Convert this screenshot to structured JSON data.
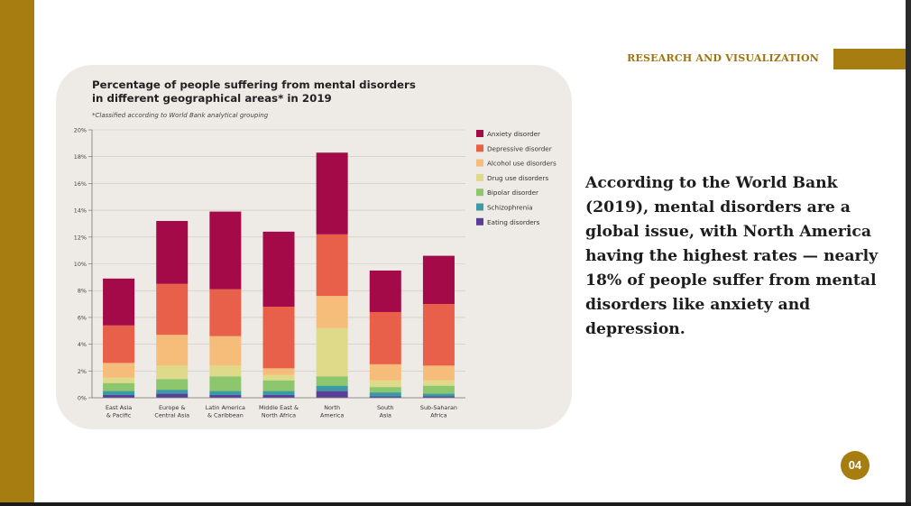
{
  "header": {
    "label": "RESEARCH AND VISUALIZATION"
  },
  "body_text": "According to the World Bank (2019), mental disorders are a global issue, with North America having the highest rates — nearly 18% of people suffer from mental disorders like anxiety and depression.",
  "page_number": "04",
  "colors": {
    "accent": "#a77c10",
    "card": "#eeebe7"
  },
  "chart_data": {
    "type": "bar",
    "stacked": true,
    "title_line1": "Percentage of people suffering from mental disorders",
    "title_line2": "in different geographical areas* in 2019",
    "subtitle": "*Classified according to World Bank analytical grouping",
    "xlabel": "",
    "ylabel": "",
    "ylim": [
      0,
      20
    ],
    "yticks": [
      "0%",
      "2%",
      "4%",
      "6%",
      "8%",
      "10%",
      "12%",
      "14%",
      "16%",
      "18%",
      "20%"
    ],
    "grid": true,
    "legend_position": "right",
    "categories": [
      [
        "East Asia",
        "& Pacific"
      ],
      [
        "Europe &",
        "Central Asia"
      ],
      [
        "Latin America",
        "& Caribbean"
      ],
      [
        "Middle East &",
        "North Africa"
      ],
      [
        "North",
        "America"
      ],
      [
        "South",
        "Asia"
      ],
      [
        "Sub-Saharan",
        "Africa"
      ]
    ],
    "series": [
      {
        "name": "Eating disorders",
        "color": "#5a3e98",
        "values": [
          0.2,
          0.3,
          0.2,
          0.2,
          0.5,
          0.1,
          0.1
        ]
      },
      {
        "name": "Schizophrenia",
        "color": "#3b9aa6",
        "values": [
          0.3,
          0.3,
          0.3,
          0.3,
          0.4,
          0.3,
          0.2
        ]
      },
      {
        "name": "Bipolar disorder",
        "color": "#8cc66d",
        "values": [
          0.6,
          0.8,
          1.1,
          0.8,
          0.7,
          0.4,
          0.6
        ]
      },
      {
        "name": "Drug use disorders",
        "color": "#dfd98a",
        "values": [
          0.4,
          1.0,
          0.8,
          0.4,
          3.6,
          0.5,
          0.4
        ]
      },
      {
        "name": "Alcohol use disorders",
        "color": "#f6bc7a",
        "values": [
          1.1,
          2.3,
          2.2,
          0.5,
          2.4,
          1.2,
          1.1
        ]
      },
      {
        "name": "Depressive disorder",
        "color": "#e86049",
        "values": [
          2.8,
          3.8,
          3.5,
          4.6,
          4.6,
          3.9,
          4.6
        ]
      },
      {
        "name": "Anxiety disorder",
        "color": "#a30a47",
        "values": [
          3.5,
          4.7,
          5.8,
          5.6,
          6.1,
          3.1,
          3.6
        ]
      }
    ]
  }
}
